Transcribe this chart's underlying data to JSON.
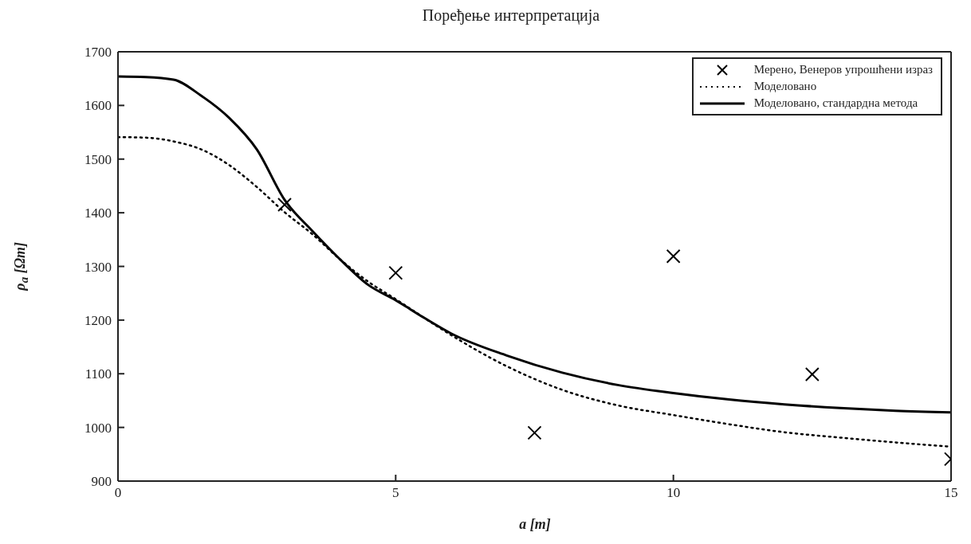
{
  "chart_data": {
    "type": "line",
    "title": "Поређење интерпретација",
    "xlabel": "a [m]",
    "ylabel": "ρ$_{a}$ [Ωm]",
    "xlim": [
      0,
      15
    ],
    "xticks": [
      0,
      5,
      10,
      15
    ],
    "ylim": [
      900,
      1700
    ],
    "yticks": [
      900,
      1000,
      1100,
      1200,
      1300,
      1400,
      1500,
      1600,
      1700
    ],
    "legend": "top right",
    "series": [
      {
        "name": "Мерено, Венеров упрошћени израз",
        "type": "scatter",
        "marker": "cross",
        "color": "#000000",
        "x": [
          3,
          5,
          7.5,
          10,
          12.5,
          15
        ],
        "values": [
          1415,
          1288,
          990,
          1319,
          1099,
          941
        ]
      },
      {
        "name": "Моделовано",
        "line_style": "dotted",
        "marker": "none",
        "color": "#000000",
        "x": [
          0,
          0.5,
          1,
          1.5,
          2,
          2.5,
          3,
          3.5,
          4,
          4.5,
          5,
          5.5,
          6,
          7,
          8,
          9,
          10,
          11,
          12,
          13,
          14,
          15
        ],
        "values": [
          1541,
          1540,
          1533,
          1518,
          1489,
          1448,
          1401,
          1360,
          1313,
          1272,
          1239,
          1205,
          1172,
          1114,
          1070,
          1041,
          1023,
          1006,
          991,
          981,
          972,
          964
        ]
      },
      {
        "name": "Моделовано, стандардна метода",
        "line_style": "solid",
        "marker": "none",
        "color": "#000000",
        "x": [
          0,
          0.5,
          1,
          1.5,
          2,
          2.5,
          3,
          3.5,
          4,
          4.5,
          5,
          5.5,
          6,
          7,
          8,
          9,
          10,
          11,
          12,
          13,
          14,
          15
        ],
        "values": [
          1654,
          1653,
          1648,
          1618,
          1577,
          1518,
          1424,
          1366,
          1313,
          1266,
          1237,
          1205,
          1175,
          1134,
          1102,
          1079,
          1064,
          1052,
          1043,
          1036,
          1031,
          1028
        ]
      }
    ]
  }
}
